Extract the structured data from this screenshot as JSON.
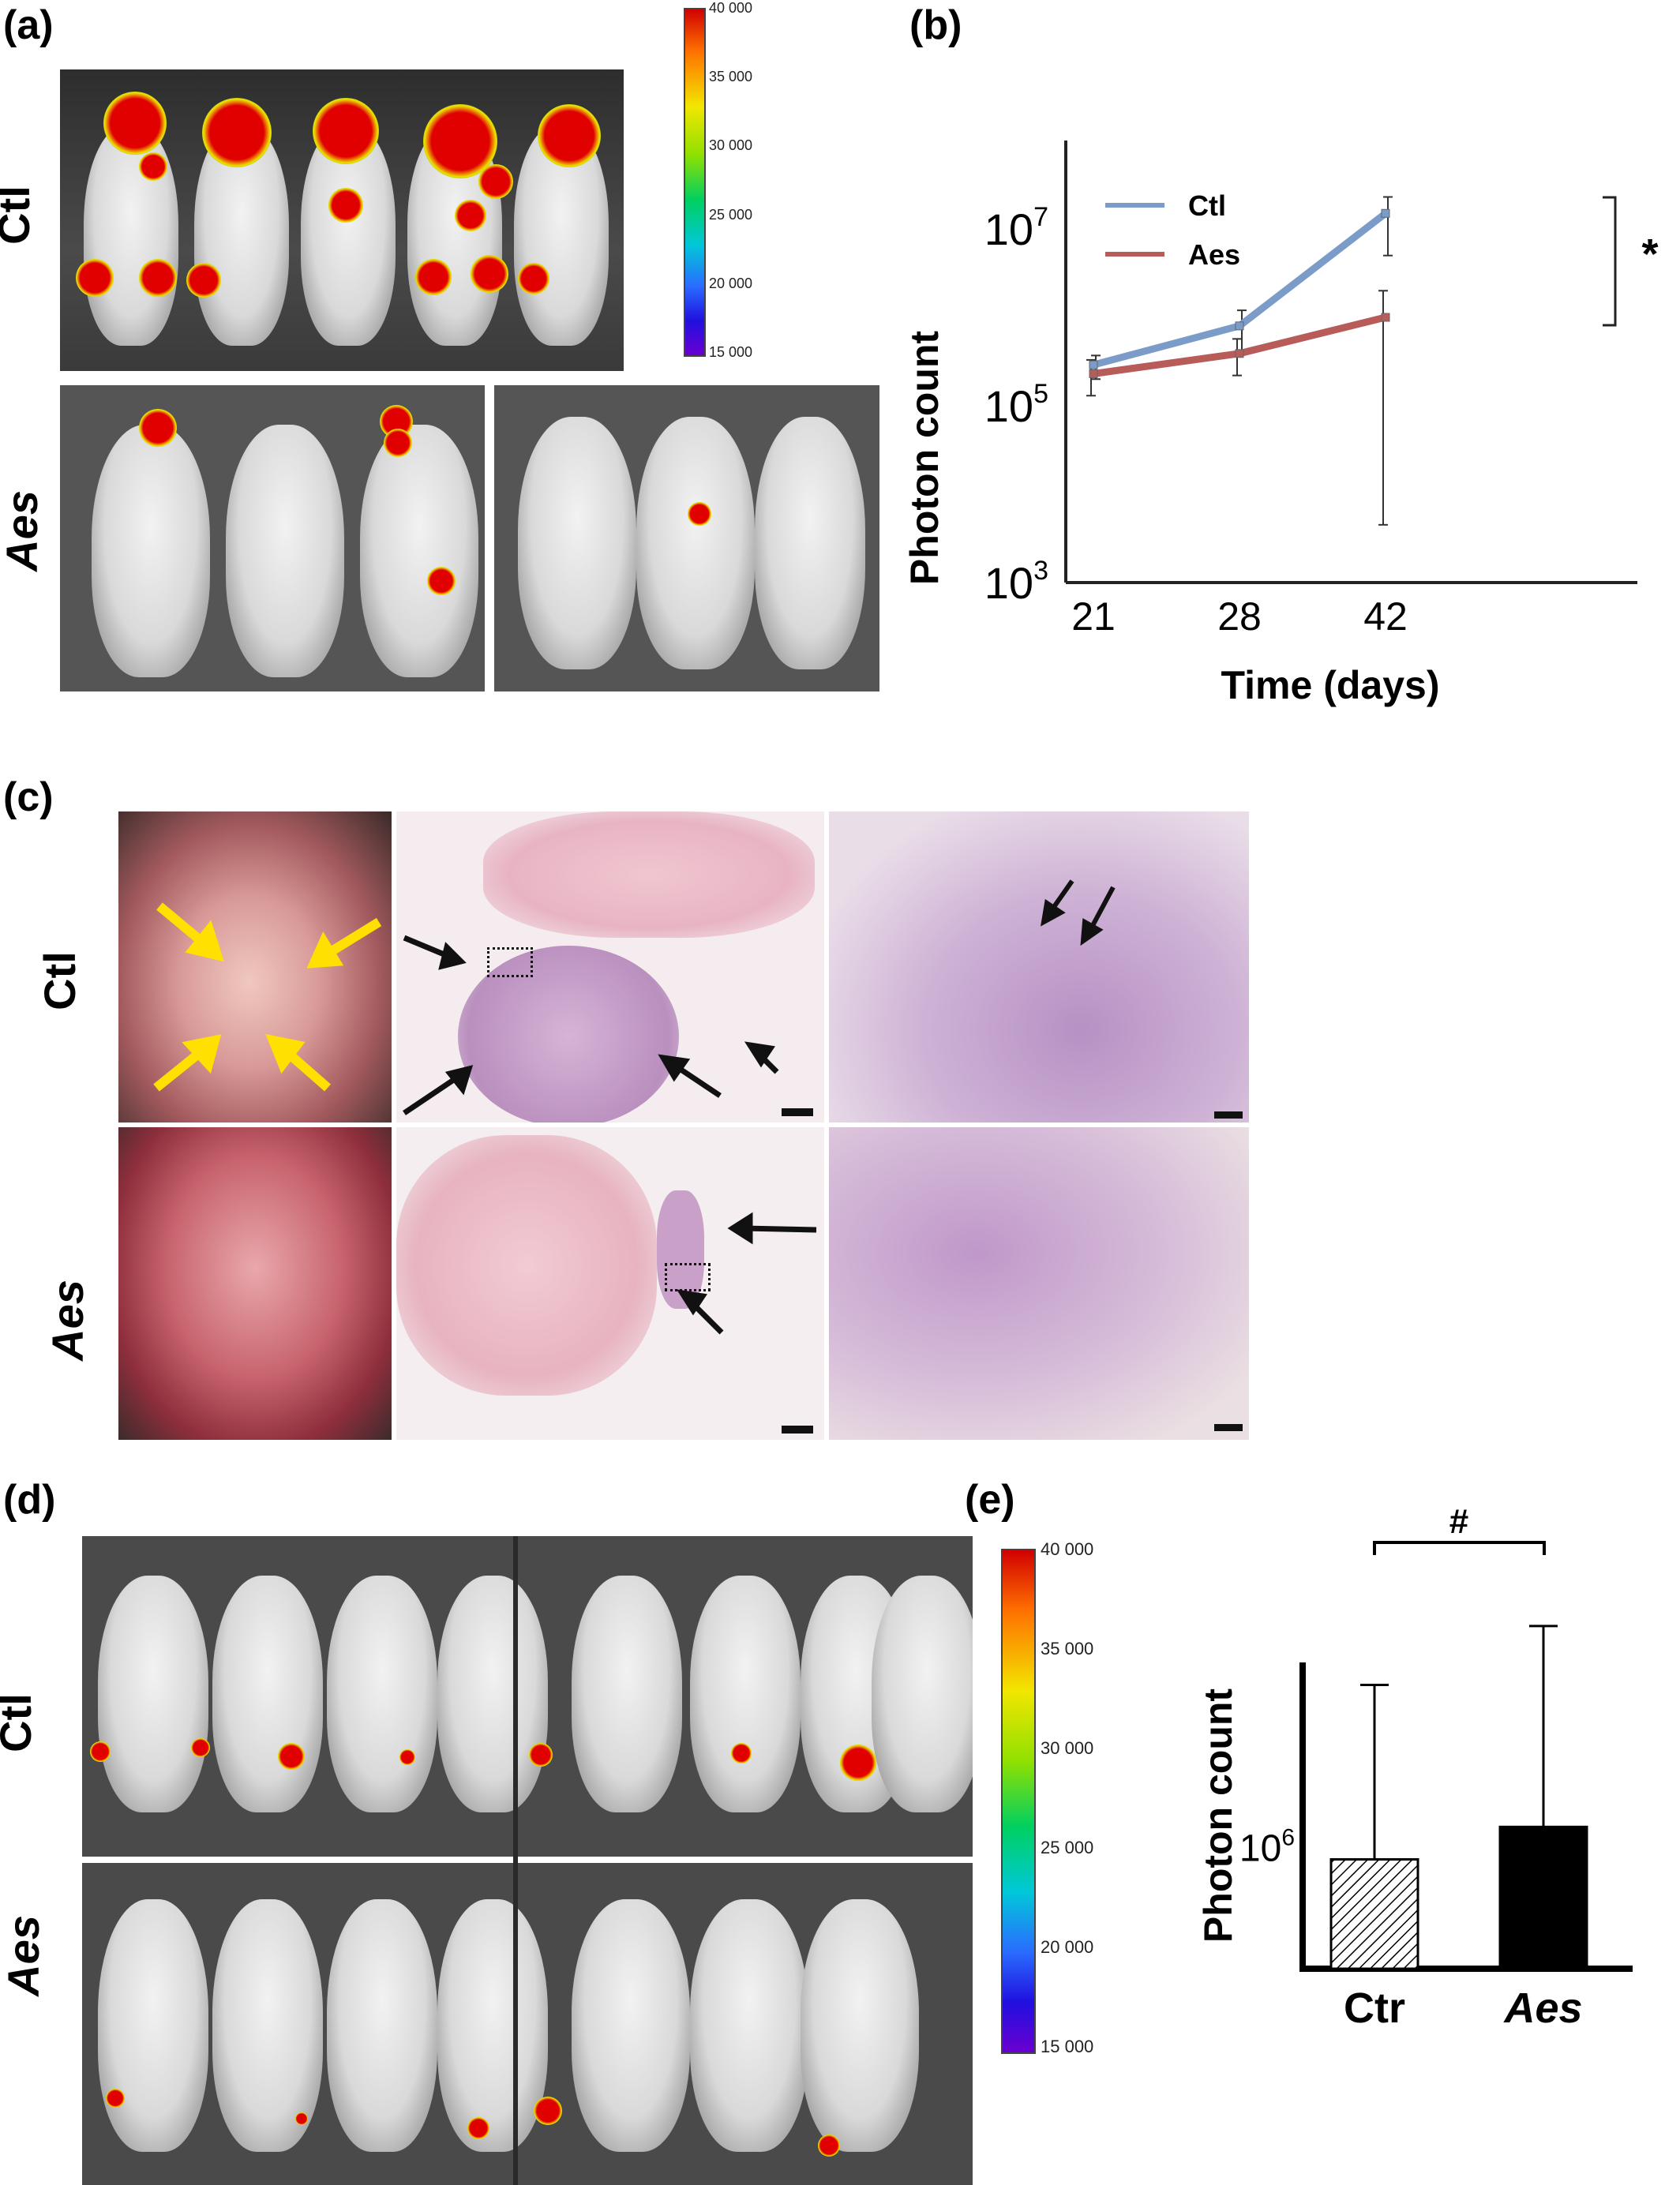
{
  "panels": {
    "a": {
      "label": "(a)",
      "row_top": "Ctl",
      "row_bottom": "Aes"
    },
    "b": {
      "label": "(b)"
    },
    "c": {
      "label": "(c)",
      "row_top": "Ctl",
      "row_bottom": "Aes"
    },
    "d": {
      "label": "(d)",
      "row_top": "Ctl",
      "row_bottom": "Aes"
    },
    "e": {
      "label": "(e)"
    }
  },
  "colorbar_a": {
    "ticks": [
      "40 000",
      "35 000",
      "30 000",
      "25 000",
      "20 000",
      "15 000"
    ]
  },
  "colorbar_d": {
    "ticks": [
      "40 000",
      "35 000",
      "30 000",
      "25 000",
      "20 000",
      "15 000"
    ]
  },
  "colors": {
    "ctl_line": "#7b9cc8",
    "aes_line": "#b85c5a",
    "bar_aes": "#000000"
  },
  "chart_data": [
    {
      "type": "line",
      "xlabel": "Time (days)",
      "ylabel": "Photon count",
      "y_scale": "log",
      "ylim_exp": [
        3,
        8
      ],
      "y_ticks": [
        {
          "base": "10",
          "exp": "3"
        },
        {
          "base": "10",
          "exp": "5"
        },
        {
          "base": "10",
          "exp": "7"
        }
      ],
      "categories": [
        "21",
        "28",
        "42"
      ],
      "series": [
        {
          "name": "Ctl",
          "values": [
            290000,
            800000,
            15000000
          ],
          "err_low": [
            200000,
            380000,
            5000000
          ],
          "err_high": [
            370000,
            1200000,
            23000000
          ]
        },
        {
          "name": "Aes",
          "values": [
            230000,
            390000,
            1000000
          ],
          "err_low": [
            130000,
            220000,
            4500
          ],
          "err_high": [
            330000,
            570000,
            2000000
          ]
        }
      ],
      "significance": "*",
      "legend": "top-left"
    },
    {
      "type": "bar",
      "ylabel": "Photon count",
      "y_scale": "log",
      "y_ticks": [
        {
          "base": "10",
          "exp": "6"
        }
      ],
      "categories": [
        "Ctr",
        "Aes"
      ],
      "values": [
        920000,
        1180000
      ],
      "err_high": [
        3500000,
        5500000
      ],
      "significance": "#"
    }
  ]
}
